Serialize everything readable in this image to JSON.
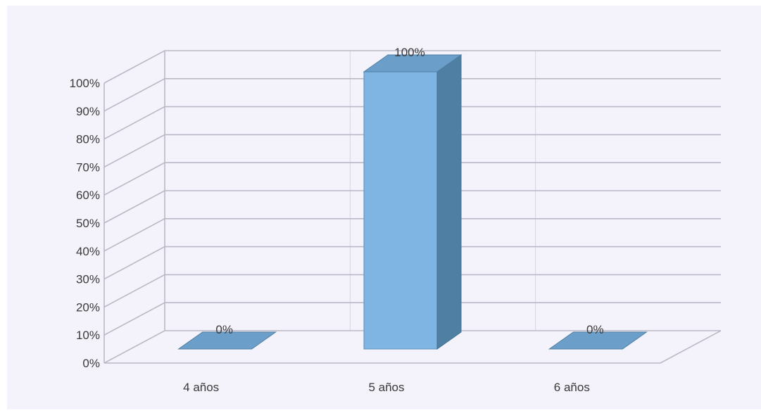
{
  "chart_data": {
    "type": "bar",
    "categories": [
      "4 años",
      "5 años",
      "6 años"
    ],
    "values": [
      0,
      100,
      0
    ],
    "data_labels": [
      "0%",
      "100%",
      "0%"
    ],
    "ylim": [
      0,
      100
    ],
    "yticks": [
      "0%",
      "10%",
      "20%",
      "30%",
      "40%",
      "50%",
      "60%",
      "70%",
      "80%",
      "90%",
      "100%"
    ],
    "grid": true,
    "legend": "none",
    "style": "3d-column",
    "colors": {
      "background": "#f4f3fb",
      "bar_front": "#7fb5e2",
      "bar_side": "#4f7fa3",
      "bar_top": "#6b9fc9",
      "grid": "#b9b8c6",
      "text": "#3a3a3a"
    }
  }
}
